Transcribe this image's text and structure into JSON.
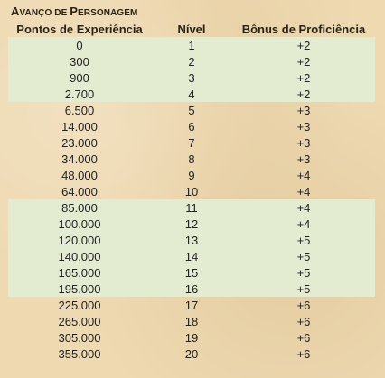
{
  "title": {
    "first_a": "A",
    "rest_a": "VANÇO DE ",
    "first_p": "P",
    "rest_p": "ERSONAGEM"
  },
  "headers": {
    "xp": "Pontos de Experiência",
    "level": "Nível",
    "bonus": "Bônus de Proficiência"
  },
  "rows": [
    {
      "xp": "0",
      "level": "1",
      "bonus": "+2"
    },
    {
      "xp": "300",
      "level": "2",
      "bonus": "+2"
    },
    {
      "xp": "900",
      "level": "3",
      "bonus": "+2"
    },
    {
      "xp": "2.700",
      "level": "4",
      "bonus": "+2"
    },
    {
      "xp": "6.500",
      "level": "5",
      "bonus": "+3"
    },
    {
      "xp": "14.000",
      "level": "6",
      "bonus": "+3"
    },
    {
      "xp": "23.000",
      "level": "7",
      "bonus": "+3"
    },
    {
      "xp": "34.000",
      "level": "8",
      "bonus": "+3"
    },
    {
      "xp": "48.000",
      "level": "9",
      "bonus": "+4"
    },
    {
      "xp": "64.000",
      "level": "10",
      "bonus": "+4"
    },
    {
      "xp": "85.000",
      "level": "11",
      "bonus": "+4"
    },
    {
      "xp": "100.000",
      "level": "12",
      "bonus": "+4"
    },
    {
      "xp": "120.000",
      "level": "13",
      "bonus": "+5"
    },
    {
      "xp": "140.000",
      "level": "14",
      "bonus": "+5"
    },
    {
      "xp": "165.000",
      "level": "15",
      "bonus": "+5"
    },
    {
      "xp": "195.000",
      "level": "16",
      "bonus": "+5"
    },
    {
      "xp": "225.000",
      "level": "17",
      "bonus": "+6"
    },
    {
      "xp": "265.000",
      "level": "18",
      "bonus": "+6"
    },
    {
      "xp": "305.000",
      "level": "19",
      "bonus": "+6"
    },
    {
      "xp": "355.000",
      "level": "20",
      "bonus": "+6"
    }
  ],
  "colors": {
    "background": "#eed9b1",
    "shaded_row": "#e3ecd0",
    "text": "#222222"
  }
}
